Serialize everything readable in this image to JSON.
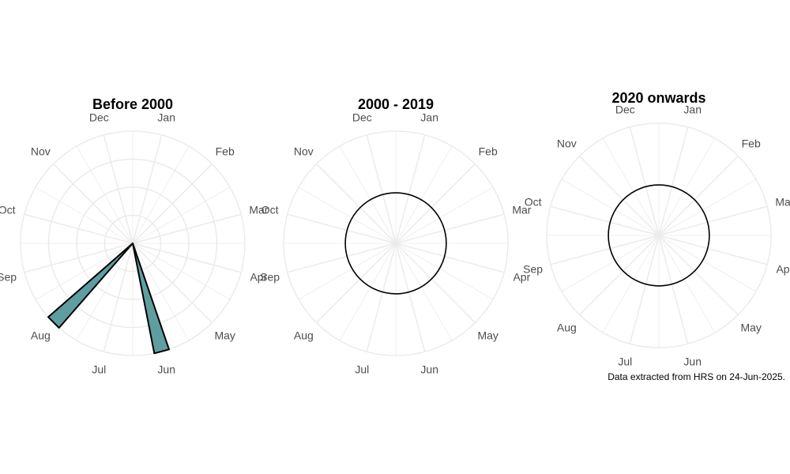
{
  "chart_data": [
    {
      "type": "bar",
      "subtype": "polar",
      "title": "Before 2000",
      "categories": [
        "Jan",
        "Feb",
        "Mar",
        "Apr",
        "May",
        "Jun",
        "Jul",
        "Aug",
        "Sep",
        "Oct",
        "Nov",
        "Dec"
      ],
      "values": [
        0,
        0,
        0,
        0,
        0,
        1,
        0,
        1,
        0,
        0,
        0,
        0
      ],
      "reference_circle": false,
      "fill": "#5f9ea0",
      "grid": true
    },
    {
      "type": "bar",
      "subtype": "polar",
      "title": "2000 - 2019",
      "categories": [
        "Jan",
        "Feb",
        "Mar",
        "Apr",
        "May",
        "Jun",
        "Jul",
        "Aug",
        "Sep",
        "Oct",
        "Nov",
        "Dec"
      ],
      "values": [
        0,
        0,
        0,
        0,
        0,
        0,
        0,
        0,
        0,
        0,
        0,
        0
      ],
      "reference_circle": true,
      "fill": "#5f9ea0",
      "grid": true
    },
    {
      "type": "bar",
      "subtype": "polar",
      "title": "2020 onwards",
      "categories": [
        "Jan",
        "Feb",
        "Mar",
        "Apr",
        "May",
        "Jun",
        "Jul",
        "Aug",
        "Sep",
        "Oct",
        "Nov",
        "Dec"
      ],
      "values": [
        0,
        0,
        0,
        0,
        0,
        0,
        0,
        0,
        0,
        0,
        0,
        0
      ],
      "reference_circle": true,
      "fill": "#5f9ea0",
      "grid": true
    }
  ],
  "caption": "Data extracted from HRS on 24-Jun-2025.",
  "colors": {
    "bar_fill": "#5f9ea0",
    "bar_stroke": "#000000",
    "grid": "#ebebeb",
    "label": "#4d4d4d"
  }
}
